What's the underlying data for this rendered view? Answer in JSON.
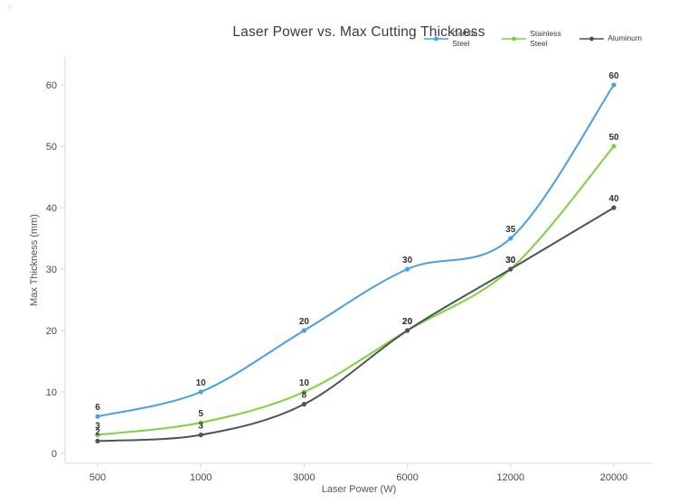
{
  "window": {
    "close_glyph": "×"
  },
  "chart_data": {
    "type": "line",
    "title": "Laser Power vs. Max Cutting Thickness",
    "xlabel": "Laser Power (W)",
    "ylabel": "Max Thickness (mm)",
    "x_axis_type": "categorical",
    "categories": [
      500,
      1000,
      3000,
      6000,
      12000,
      20000
    ],
    "y_ticks": [
      0,
      10,
      20,
      30,
      40,
      50,
      60
    ],
    "ylim": [
      0,
      60
    ],
    "grid": false,
    "line_shape": "spline",
    "point_labels_visible": true,
    "legend_position": "top-right",
    "axis_color": "#d9d9d9",
    "tick_label_color": "#4a4a4a",
    "axis_title_color": "#555555",
    "title_color": "#3b3b3b",
    "point_label_color": "#333333",
    "series": [
      {
        "name": "Carbon Steel",
        "color": "#45a1e5",
        "values": [
          6,
          10,
          20,
          30,
          35,
          60
        ]
      },
      {
        "name": "Stainless Steel",
        "color": "#7cd13e",
        "values": [
          3,
          5,
          10,
          20,
          30,
          50
        ]
      },
      {
        "name": "Aluminum",
        "color": "#4b5556",
        "values": [
          2,
          3,
          8,
          20,
          30,
          40
        ]
      }
    ]
  }
}
